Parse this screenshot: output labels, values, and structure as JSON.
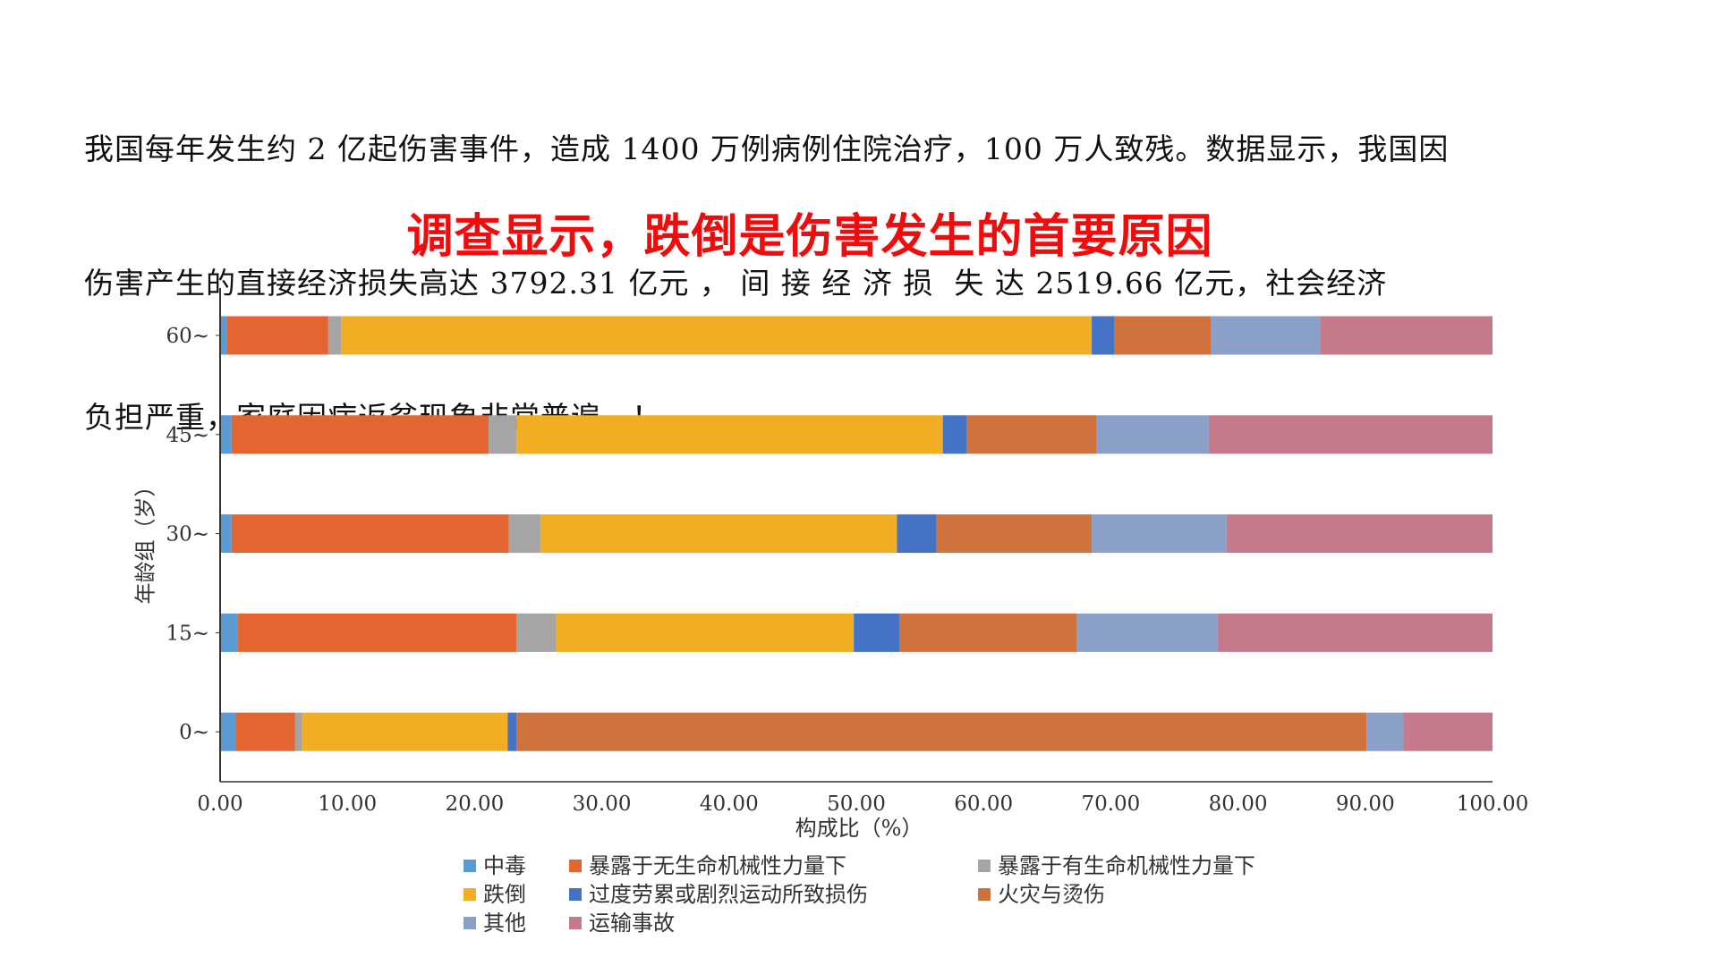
{
  "paragraph": {
    "lines": [
      "我国每年发生约 2 亿起伤害事件，造成 1400 万例病例住院治疗，100 万人致残。数据显示，我国因",
      "伤害产生的直接经济损失高达 3792.31 亿元 ， 间 接 经 济 损  失 达 2519.66 亿元，社会经济",
      "负担严重，家庭因病返贫现象非常普遍，！"
    ]
  },
  "headline": "调查显示，跌倒是伤害发生的首要原因",
  "chart_data": {
    "type": "bar",
    "orientation": "horizontal",
    "stacked": true,
    "categories": [
      "60~",
      "45~",
      "30~",
      "15~",
      "0~"
    ],
    "xlabel": "构成比（%）",
    "ylabel": "年龄组（岁）",
    "xlim": [
      0,
      100
    ],
    "xticks": [
      "0.00",
      "10.00",
      "20.00",
      "30.00",
      "40.00",
      "50.00",
      "60.00",
      "70.00",
      "80.00",
      "90.00",
      "100.00"
    ],
    "grid": false,
    "legend_position": "bottom",
    "series": [
      {
        "name": "中毒",
        "color": "#5b9bd5",
        "values": [
          0.5,
          0.9,
          0.9,
          1.4,
          1.2
        ]
      },
      {
        "name": "暴露于无生命机械性力量下",
        "color": "#e36632",
        "values": [
          8.0,
          20.2,
          21.8,
          21.9,
          4.7
        ]
      },
      {
        "name": "暴露于有生命机械性力量下",
        "color": "#a5a5a5",
        "values": [
          1.0,
          2.2,
          2.5,
          3.1,
          0.5
        ]
      },
      {
        "name": "跌倒",
        "color": "#f2ae22",
        "values": [
          59.0,
          33.5,
          28.0,
          23.4,
          16.2
        ]
      },
      {
        "name": "过度劳累或剧烈运动所致损伤",
        "color": "#4472c4",
        "values": [
          1.8,
          1.9,
          3.1,
          3.6,
          0.7
        ]
      },
      {
        "name": "火灾与烫伤",
        "color": "#cf723c",
        "values": [
          7.6,
          10.2,
          12.2,
          13.9,
          66.8
        ]
      },
      {
        "name": "其他",
        "color": "#8aa0c8",
        "values": [
          8.6,
          8.8,
          10.6,
          11.1,
          2.9
        ]
      },
      {
        "name": "运输事故",
        "color": "#c47a8a",
        "values": [
          13.5,
          22.3,
          20.9,
          21.6,
          7.0
        ]
      }
    ]
  }
}
